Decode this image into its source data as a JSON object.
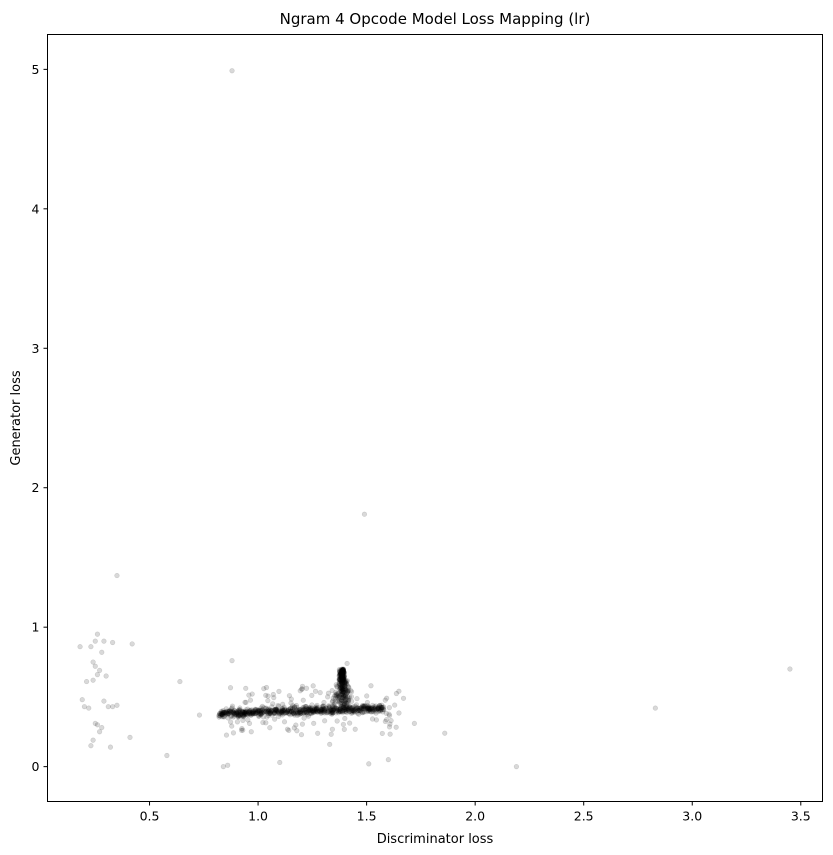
{
  "chart_data": {
    "type": "scatter",
    "title": "Ngram 4 Opcode Model Loss Mapping (lr)",
    "xlabel": "Discriminator loss",
    "ylabel": "Generator loss",
    "xlim": [
      0.03,
      3.6
    ],
    "ylim": [
      -0.25,
      5.25
    ],
    "xticks": [
      0.5,
      1.0,
      1.5,
      2.0,
      2.5,
      3.0,
      3.5
    ],
    "xtick_labels": [
      "0.5",
      "1.0",
      "1.5",
      "2.0",
      "2.5",
      "3.0",
      "3.5"
    ],
    "yticks": [
      0,
      1,
      2,
      3,
      4,
      5
    ],
    "ytick_labels": [
      "0",
      "1",
      "2",
      "3",
      "4",
      "5"
    ],
    "grid": false,
    "marker_color": "#000000",
    "marker_alpha": 0.15,
    "outliers": [
      {
        "x": 0.88,
        "y": 4.99
      },
      {
        "x": 1.49,
        "y": 1.81
      },
      {
        "x": 0.35,
        "y": 1.37
      },
      {
        "x": 3.45,
        "y": 0.7
      },
      {
        "x": 2.83,
        "y": 0.42
      },
      {
        "x": 2.19,
        "y": 0.0
      },
      {
        "x": 1.86,
        "y": 0.24
      },
      {
        "x": 1.72,
        "y": 0.31
      },
      {
        "x": 1.67,
        "y": 0.49
      },
      {
        "x": 1.6,
        "y": 0.05
      },
      {
        "x": 1.51,
        "y": 0.02
      },
      {
        "x": 1.33,
        "y": 0.16
      },
      {
        "x": 1.1,
        "y": 0.03
      },
      {
        "x": 0.86,
        "y": 0.01
      },
      {
        "x": 0.84,
        "y": 0.0
      },
      {
        "x": 0.58,
        "y": 0.08
      },
      {
        "x": 0.64,
        "y": 0.61
      },
      {
        "x": 0.88,
        "y": 0.76
      },
      {
        "x": 0.41,
        "y": 0.21
      },
      {
        "x": 0.42,
        "y": 0.88
      },
      {
        "x": 0.73,
        "y": 0.37
      },
      {
        "x": 1.41,
        "y": 0.74
      },
      {
        "x": 1.52,
        "y": 0.58
      }
    ],
    "left_cluster": [
      {
        "x": 0.18,
        "y": 0.86
      },
      {
        "x": 0.19,
        "y": 0.48
      },
      {
        "x": 0.2,
        "y": 0.43
      },
      {
        "x": 0.21,
        "y": 0.61
      },
      {
        "x": 0.23,
        "y": 0.86
      },
      {
        "x": 0.24,
        "y": 0.75
      },
      {
        "x": 0.25,
        "y": 0.9
      },
      {
        "x": 0.26,
        "y": 0.95
      },
      {
        "x": 0.25,
        "y": 0.72
      },
      {
        "x": 0.26,
        "y": 0.66
      },
      {
        "x": 0.27,
        "y": 0.69
      },
      {
        "x": 0.24,
        "y": 0.62
      },
      {
        "x": 0.28,
        "y": 0.82
      },
      {
        "x": 0.29,
        "y": 0.9
      },
      {
        "x": 0.33,
        "y": 0.89
      },
      {
        "x": 0.3,
        "y": 0.65
      },
      {
        "x": 0.29,
        "y": 0.47
      },
      {
        "x": 0.31,
        "y": 0.43
      },
      {
        "x": 0.33,
        "y": 0.43
      },
      {
        "x": 0.35,
        "y": 0.44
      },
      {
        "x": 0.26,
        "y": 0.3
      },
      {
        "x": 0.25,
        "y": 0.31
      },
      {
        "x": 0.28,
        "y": 0.28
      },
      {
        "x": 0.27,
        "y": 0.25
      },
      {
        "x": 0.24,
        "y": 0.19
      },
      {
        "x": 0.23,
        "y": 0.15
      },
      {
        "x": 0.32,
        "y": 0.14
      },
      {
        "x": 0.22,
        "y": 0.42
      }
    ],
    "dense_band": {
      "x_range": [
        0.82,
        1.58
      ],
      "y_center": 0.41,
      "y_spread": 0.06,
      "n": 700
    },
    "spike": {
      "x_center": 1.39,
      "x_spread": 0.06,
      "y_range": [
        0.45,
        0.7
      ],
      "n": 220
    },
    "spike_top": {
      "x_center": 1.385,
      "y_range": [
        0.62,
        0.7
      ],
      "n": 60
    },
    "band_scatter": {
      "x_range": [
        0.85,
        1.65
      ],
      "y_range": [
        0.22,
        0.58
      ],
      "n": 130
    }
  }
}
